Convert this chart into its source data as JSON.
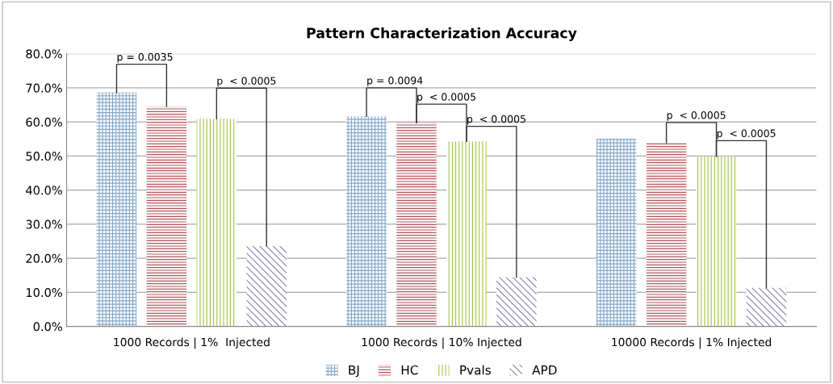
{
  "chart_data": {
    "type": "bar",
    "title": "Pattern Characterization Accuracy",
    "categories": [
      "1000 Records | 1%  Injected",
      "1000 Records | 10% Injected",
      "10000 Records | 1% Injected"
    ],
    "series": [
      {
        "name": "BJ",
        "color": "#7fa6c9",
        "values": [
          68.6,
          61.6,
          55.1
        ]
      },
      {
        "name": "HC",
        "color": "#b5545a",
        "values": [
          64.5,
          59.8,
          53.9
        ]
      },
      {
        "name": "Pvals",
        "color": "#a4c639",
        "values": [
          60.9,
          54.3,
          49.9
        ]
      },
      {
        "name": "APD",
        "color": "#8a7bb0",
        "values": [
          23.6,
          14.4,
          11.3
        ]
      }
    ],
    "ylim": [
      0,
      80
    ],
    "yticks": [
      {
        "value": 0,
        "label": "0.0%"
      },
      {
        "value": 10,
        "label": "10.0%"
      },
      {
        "value": 20,
        "label": "20.0%"
      },
      {
        "value": 30,
        "label": "30.0%"
      },
      {
        "value": 40,
        "label": "40.0%"
      },
      {
        "value": 50,
        "label": "50.0%"
      },
      {
        "value": 60,
        "label": "60.0%"
      },
      {
        "value": 70,
        "label": "70.0%"
      },
      {
        "value": 80,
        "label": "80.0%"
      }
    ],
    "annotations": [
      "p = 0.0035",
      "p  < 0.0005",
      "p = 0.0094",
      "p  < 0.0005",
      "p  < 0.0005",
      "p  < 0.0005",
      "p  < 0.0005"
    ],
    "grid": "y",
    "legend": "bottom"
  }
}
